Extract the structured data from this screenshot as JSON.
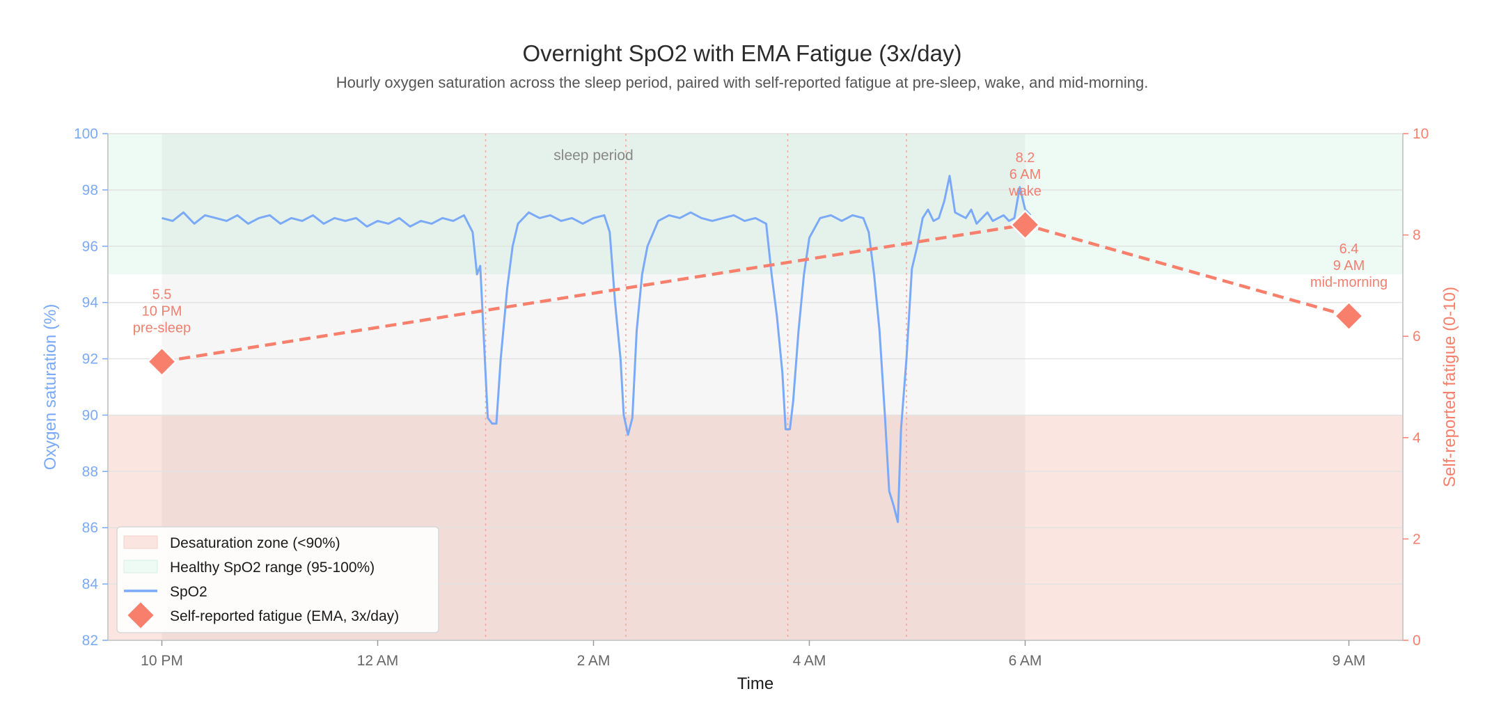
{
  "chart_data": {
    "type": "line",
    "title": "Overnight SpO2 with EMA Fatigue (3x/day)",
    "subtitle": "Hourly oxygen saturation across the sleep period, paired with self-reported fatigue at pre-sleep, wake, and mid-morning.",
    "xlabel": "Time",
    "ylabel_left": "Oxygen saturation (%)",
    "ylabel_right": "Self-reported fatigue (0-10)",
    "x_ticks": [
      {
        "h": 0,
        "label": "10 PM"
      },
      {
        "h": 2,
        "label": "12 AM"
      },
      {
        "h": 4,
        "label": "2 AM"
      },
      {
        "h": 6,
        "label": "4 AM"
      },
      {
        "h": 8,
        "label": "6 AM"
      },
      {
        "h": 11,
        "label": "9 AM"
      }
    ],
    "xlim": [
      -0.5,
      11.5
    ],
    "ylim_left": [
      82,
      100
    ],
    "y_ticks_left": [
      "82",
      "84",
      "86",
      "88",
      "90",
      "92",
      "94",
      "96",
      "98",
      "100"
    ],
    "ylim_right": [
      0,
      10
    ],
    "y_ticks_right": [
      "0",
      "2",
      "4",
      "6",
      "8",
      "10"
    ],
    "bands": {
      "desaturation": {
        "y": [
          82,
          90
        ],
        "label": "Desaturation zone (<90%)"
      },
      "healthy": {
        "y": [
          95,
          100
        ],
        "label": "Healthy SpO2 range (95-100%)"
      },
      "sleep_period": {
        "x": [
          0,
          8
        ],
        "label": "sleep period"
      }
    },
    "event_lines_h": [
      3.0,
      4.3,
      5.8,
      6.9
    ],
    "spo2": {
      "name": "SpO2",
      "color": "#7aaaf7",
      "baseline": [
        [
          0.0,
          97.0
        ],
        [
          0.25,
          96.9
        ],
        [
          0.5,
          97.1
        ],
        [
          0.75,
          96.8
        ],
        [
          1.0,
          97.0
        ],
        [
          1.25,
          96.9
        ],
        [
          1.5,
          97.0
        ],
        [
          1.75,
          96.9
        ],
        [
          2.0,
          96.8
        ],
        [
          2.25,
          96.7
        ],
        [
          2.5,
          96.8
        ],
        [
          2.75,
          96.9
        ],
        [
          2.9,
          97.0
        ]
      ],
      "segments": [
        [
          [
            0.0,
            97.0
          ],
          [
            0.1,
            96.9
          ],
          [
            0.2,
            97.2
          ],
          [
            0.3,
            96.8
          ],
          [
            0.4,
            97.1
          ],
          [
            0.5,
            97.0
          ],
          [
            0.6,
            96.9
          ],
          [
            0.7,
            97.1
          ],
          [
            0.8,
            96.8
          ],
          [
            0.9,
            97.0
          ],
          [
            1.0,
            97.1
          ],
          [
            1.1,
            96.8
          ],
          [
            1.2,
            97.0
          ],
          [
            1.3,
            96.9
          ],
          [
            1.4,
            97.1
          ],
          [
            1.5,
            96.8
          ],
          [
            1.6,
            97.0
          ],
          [
            1.7,
            96.9
          ],
          [
            1.8,
            97.0
          ],
          [
            1.9,
            96.7
          ],
          [
            2.0,
            96.9
          ],
          [
            2.1,
            96.8
          ],
          [
            2.2,
            97.0
          ],
          [
            2.3,
            96.7
          ],
          [
            2.4,
            96.9
          ],
          [
            2.5,
            96.8
          ],
          [
            2.6,
            97.0
          ],
          [
            2.7,
            96.9
          ],
          [
            2.8,
            97.1
          ],
          [
            2.88,
            96.5
          ],
          [
            2.92,
            95.0
          ],
          [
            2.95,
            95.3
          ],
          [
            2.98,
            93.0
          ],
          [
            3.02,
            89.9
          ],
          [
            3.06,
            89.7
          ],
          [
            3.1,
            89.7
          ],
          [
            3.14,
            92.0
          ],
          [
            3.2,
            94.5
          ],
          [
            3.25,
            96.0
          ],
          [
            3.3,
            96.8
          ],
          [
            3.4,
            97.2
          ],
          [
            3.5,
            97.0
          ],
          [
            3.6,
            97.1
          ],
          [
            3.7,
            96.9
          ],
          [
            3.8,
            97.0
          ],
          [
            3.9,
            96.8
          ],
          [
            4.0,
            97.0
          ],
          [
            4.1,
            97.1
          ],
          [
            4.15,
            96.5
          ],
          [
            4.2,
            94.0
          ],
          [
            4.25,
            92.0
          ],
          [
            4.28,
            90.0
          ],
          [
            4.32,
            89.3
          ],
          [
            4.36,
            89.9
          ],
          [
            4.4,
            93.0
          ],
          [
            4.45,
            95.0
          ],
          [
            4.5,
            96.0
          ],
          [
            4.6,
            96.9
          ],
          [
            4.7,
            97.1
          ],
          [
            4.8,
            97.0
          ],
          [
            4.9,
            97.2
          ],
          [
            5.0,
            97.0
          ],
          [
            5.1,
            96.9
          ],
          [
            5.2,
            97.0
          ],
          [
            5.3,
            97.1
          ],
          [
            5.4,
            96.9
          ],
          [
            5.5,
            97.0
          ],
          [
            5.6,
            96.8
          ],
          [
            5.65,
            95.0
          ],
          [
            5.7,
            93.5
          ],
          [
            5.75,
            91.5
          ],
          [
            5.78,
            89.5
          ],
          [
            5.82,
            89.5
          ],
          [
            5.85,
            90.5
          ],
          [
            5.9,
            93.0
          ],
          [
            5.95,
            95.0
          ],
          [
            6.0,
            96.3
          ],
          [
            6.1,
            97.0
          ],
          [
            6.2,
            97.1
          ],
          [
            6.3,
            96.9
          ],
          [
            6.4,
            97.1
          ],
          [
            6.5,
            97.0
          ],
          [
            6.55,
            96.5
          ],
          [
            6.6,
            95.0
          ],
          [
            6.65,
            93.0
          ],
          [
            6.7,
            90.0
          ],
          [
            6.74,
            87.3
          ],
          [
            6.78,
            86.8
          ],
          [
            6.82,
            86.2
          ],
          [
            6.85,
            89.5
          ],
          [
            6.9,
            92.0
          ],
          [
            6.95,
            95.2
          ],
          [
            7.0,
            96.0
          ],
          [
            7.05,
            97.0
          ],
          [
            7.1,
            97.3
          ],
          [
            7.15,
            96.9
          ],
          [
            7.2,
            97.0
          ],
          [
            7.25,
            97.6
          ],
          [
            7.3,
            98.5
          ],
          [
            7.35,
            97.2
          ],
          [
            7.4,
            97.1
          ],
          [
            7.45,
            97.0
          ],
          [
            7.5,
            97.3
          ],
          [
            7.55,
            96.8
          ],
          [
            7.6,
            97.0
          ],
          [
            7.65,
            97.2
          ],
          [
            7.7,
            96.9
          ],
          [
            7.75,
            97.0
          ],
          [
            7.8,
            97.1
          ],
          [
            7.85,
            96.9
          ],
          [
            7.9,
            97.0
          ],
          [
            7.95,
            98.1
          ],
          [
            8.0,
            97.3
          ],
          [
            8.05,
            97.1
          ]
        ]
      ]
    },
    "fatigue": {
      "name": "Self-reported fatigue (EMA, 3x/day)",
      "color": "#f87f6c",
      "points": [
        {
          "h": 0,
          "value": 5.5,
          "value_label": "5.5",
          "time_label": "10 PM",
          "tag": "pre-sleep"
        },
        {
          "h": 8,
          "value": 8.2,
          "value_label": "8.2",
          "time_label": "6 AM",
          "tag": "wake"
        },
        {
          "h": 11,
          "value": 6.4,
          "value_label": "6.4",
          "time_label": "9 AM",
          "tag": "mid-morning"
        }
      ]
    },
    "legend": {
      "position": "lower-left",
      "entries": [
        "Desaturation zone (<90%)",
        "Healthy SpO2 range (95-100%)",
        "SpO2",
        "Self-reported fatigue (EMA, 3x/day)"
      ]
    },
    "grid": true
  }
}
